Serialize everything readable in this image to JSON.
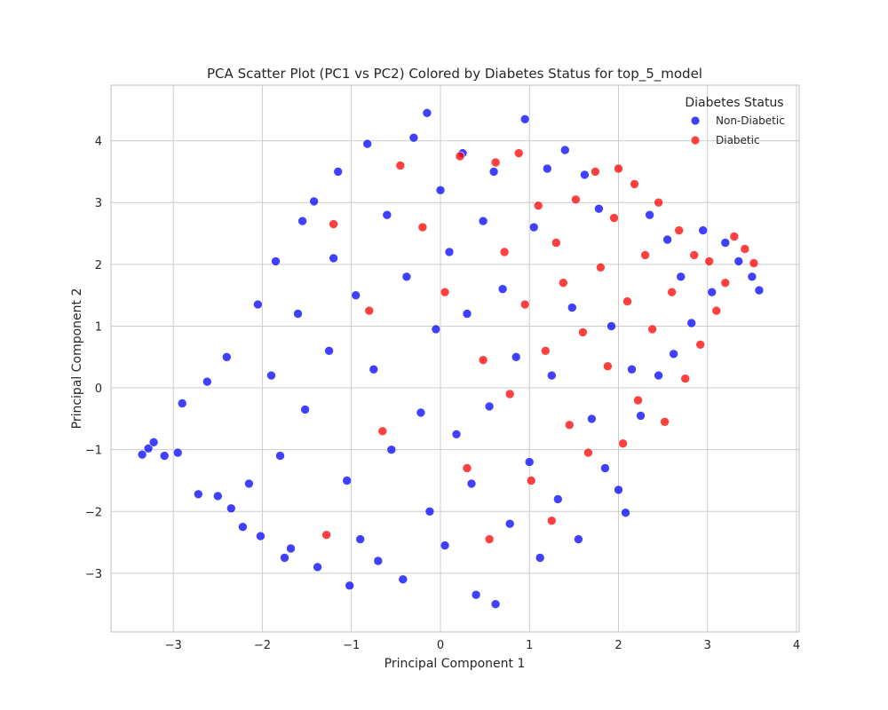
{
  "chart_data": {
    "type": "scatter",
    "title": "PCA Scatter Plot (PC1 vs PC2) Colored by Diabetes Status for top_5_model",
    "xlabel": "Principal Component 1",
    "ylabel": "Principal Component 2",
    "xlim": [
      -3.7,
      4.03
    ],
    "ylim": [
      -3.95,
      4.9
    ],
    "x_ticks": [
      -3,
      -2,
      -1,
      0,
      1,
      2,
      3,
      4
    ],
    "y_ticks": [
      -3,
      -2,
      -1,
      0,
      1,
      2,
      3,
      4
    ],
    "x_tick_labels": [
      "−3",
      "−2",
      "−1",
      "0",
      "1",
      "2",
      "3",
      "4"
    ],
    "y_tick_labels": [
      "−3",
      "−2",
      "−1",
      "0",
      "1",
      "2",
      "3",
      "4"
    ],
    "grid": true,
    "legend": {
      "title": "Diabetes Status",
      "position": "top-right"
    },
    "series": [
      {
        "name": "Non-Diabetic",
        "color": "#0000ff",
        "points": [
          [
            -3.35,
            -1.08
          ],
          [
            -3.28,
            -0.98
          ],
          [
            -3.22,
            -0.88
          ],
          [
            -3.1,
            -1.1
          ],
          [
            -2.95,
            -1.05
          ],
          [
            -2.9,
            -0.25
          ],
          [
            -2.72,
            -1.72
          ],
          [
            -2.62,
            0.1
          ],
          [
            -2.5,
            -1.75
          ],
          [
            -2.4,
            0.5
          ],
          [
            -2.35,
            -1.95
          ],
          [
            -2.22,
            -2.25
          ],
          [
            -2.15,
            -1.55
          ],
          [
            -2.05,
            1.35
          ],
          [
            -2.02,
            -2.4
          ],
          [
            -1.9,
            0.2
          ],
          [
            -1.85,
            2.05
          ],
          [
            -1.8,
            -1.1
          ],
          [
            -1.75,
            -2.75
          ],
          [
            -1.68,
            -2.6
          ],
          [
            -1.6,
            1.2
          ],
          [
            -1.55,
            2.7
          ],
          [
            -1.52,
            -0.35
          ],
          [
            -1.42,
            3.02
          ],
          [
            -1.38,
            -2.9
          ],
          [
            -1.25,
            0.6
          ],
          [
            -1.2,
            2.1
          ],
          [
            -1.15,
            3.5
          ],
          [
            -1.05,
            -1.5
          ],
          [
            -1.02,
            -3.2
          ],
          [
            -0.95,
            1.5
          ],
          [
            -0.9,
            -2.45
          ],
          [
            -0.82,
            3.95
          ],
          [
            -0.75,
            0.3
          ],
          [
            -0.7,
            -2.8
          ],
          [
            -0.6,
            2.8
          ],
          [
            -0.55,
            -1.0
          ],
          [
            -0.42,
            -3.1
          ],
          [
            -0.38,
            1.8
          ],
          [
            -0.3,
            4.05
          ],
          [
            -0.22,
            -0.4
          ],
          [
            -0.15,
            4.45
          ],
          [
            -0.12,
            -2.0
          ],
          [
            -0.05,
            0.95
          ],
          [
            0.0,
            3.2
          ],
          [
            0.05,
            -2.55
          ],
          [
            0.1,
            2.2
          ],
          [
            0.18,
            -0.75
          ],
          [
            0.25,
            3.8
          ],
          [
            0.3,
            1.2
          ],
          [
            0.35,
            -1.55
          ],
          [
            0.4,
            -3.35
          ],
          [
            0.48,
            2.7
          ],
          [
            0.55,
            -0.3
          ],
          [
            0.6,
            3.5
          ],
          [
            0.62,
            -3.5
          ],
          [
            0.7,
            1.6
          ],
          [
            0.78,
            -2.2
          ],
          [
            0.85,
            0.5
          ],
          [
            0.95,
            4.35
          ],
          [
            1.0,
            -1.2
          ],
          [
            1.05,
            2.6
          ],
          [
            1.12,
            -2.75
          ],
          [
            1.2,
            3.55
          ],
          [
            1.25,
            0.2
          ],
          [
            1.32,
            -1.8
          ],
          [
            1.4,
            3.85
          ],
          [
            1.48,
            1.3
          ],
          [
            1.55,
            -2.45
          ],
          [
            1.62,
            3.45
          ],
          [
            1.7,
            -0.5
          ],
          [
            1.78,
            2.9
          ],
          [
            1.85,
            -1.3
          ],
          [
            1.92,
            1.0
          ],
          [
            2.0,
            -1.65
          ],
          [
            2.08,
            -2.02
          ],
          [
            2.15,
            0.3
          ],
          [
            2.25,
            -0.45
          ],
          [
            2.35,
            2.8
          ],
          [
            2.45,
            0.2
          ],
          [
            2.55,
            2.4
          ],
          [
            2.62,
            0.55
          ],
          [
            2.7,
            1.8
          ],
          [
            2.82,
            1.05
          ],
          [
            2.95,
            2.55
          ],
          [
            3.05,
            1.55
          ],
          [
            3.2,
            2.35
          ],
          [
            3.35,
            2.05
          ],
          [
            3.5,
            1.8
          ],
          [
            3.58,
            1.58
          ]
        ]
      },
      {
        "name": "Diabetic",
        "color": "#ff0000",
        "points": [
          [
            -1.28,
            -2.38
          ],
          [
            -1.2,
            2.65
          ],
          [
            -0.8,
            1.25
          ],
          [
            -0.65,
            -0.7
          ],
          [
            -0.45,
            3.6
          ],
          [
            -0.2,
            2.6
          ],
          [
            0.05,
            1.55
          ],
          [
            0.22,
            3.75
          ],
          [
            0.3,
            -1.3
          ],
          [
            0.48,
            0.45
          ],
          [
            0.55,
            -2.45
          ],
          [
            0.62,
            3.65
          ],
          [
            0.72,
            2.2
          ],
          [
            0.78,
            -0.1
          ],
          [
            0.88,
            3.8
          ],
          [
            0.95,
            1.35
          ],
          [
            1.02,
            -1.5
          ],
          [
            1.1,
            2.95
          ],
          [
            1.18,
            0.6
          ],
          [
            1.25,
            -2.15
          ],
          [
            1.3,
            2.35
          ],
          [
            1.38,
            1.7
          ],
          [
            1.45,
            -0.6
          ],
          [
            1.52,
            3.05
          ],
          [
            1.6,
            0.9
          ],
          [
            1.66,
            -1.05
          ],
          [
            1.74,
            3.5
          ],
          [
            1.8,
            1.95
          ],
          [
            1.88,
            0.35
          ],
          [
            1.95,
            2.75
          ],
          [
            2.0,
            3.55
          ],
          [
            2.05,
            -0.9
          ],
          [
            2.1,
            1.4
          ],
          [
            2.18,
            3.3
          ],
          [
            2.22,
            -0.2
          ],
          [
            2.3,
            2.15
          ],
          [
            2.38,
            0.95
          ],
          [
            2.45,
            3.0
          ],
          [
            2.52,
            -0.55
          ],
          [
            2.6,
            1.55
          ],
          [
            2.68,
            2.55
          ],
          [
            2.75,
            0.15
          ],
          [
            2.85,
            2.15
          ],
          [
            2.92,
            0.7
          ],
          [
            3.02,
            2.05
          ],
          [
            3.1,
            1.25
          ],
          [
            3.2,
            1.7
          ],
          [
            3.3,
            2.45
          ],
          [
            3.42,
            2.25
          ],
          [
            3.52,
            2.02
          ]
        ]
      }
    ]
  }
}
